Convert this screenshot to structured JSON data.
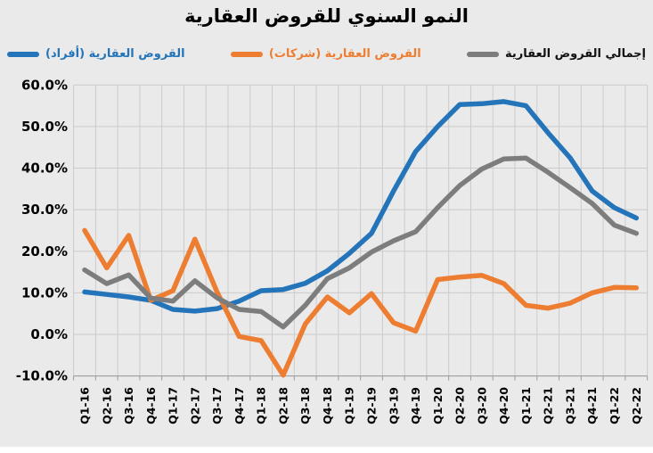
{
  "title": "النمو السنوي للقروض العقارية",
  "legend": [
    {
      "label": "القروض العقارية (أفراد)",
      "marker_color": "#2474b9",
      "text_color": "#2474b9"
    },
    {
      "label": "القروض العقارية (شركات)",
      "marker_color": "#ed7d31",
      "text_color": "#ed7d31"
    },
    {
      "label": "إجمالي القروض العقارية",
      "marker_color": "#7d7d7d",
      "text_color": "#111111"
    }
  ],
  "chart_data": {
    "type": "line",
    "title": "النمو السنوي للقروض العقارية",
    "categories": [
      "Q1-16",
      "Q2-16",
      "Q3-16",
      "Q4-16",
      "Q1-17",
      "Q2-17",
      "Q3-17",
      "Q4-17",
      "Q1-18",
      "Q2-18",
      "Q3-18",
      "Q4-18",
      "Q1-19",
      "Q2-19",
      "Q3-19",
      "Q4-19",
      "Q1-20",
      "Q2-20",
      "Q3-20",
      "Q4-20",
      "Q1-21",
      "Q2-21",
      "Q3-21",
      "Q4-21",
      "Q1-22",
      "Q2-22"
    ],
    "series": [
      {
        "name": "القروض العقارية (أفراد)",
        "color": "#2474b9",
        "values": [
          10.2,
          9.6,
          9.0,
          8.2,
          6.0,
          5.6,
          6.2,
          8.0,
          10.5,
          10.8,
          12.3,
          15.3,
          19.5,
          24.3,
          34.5,
          44.0,
          50.0,
          55.3,
          55.5,
          56.0,
          55.0,
          48.5,
          42.5,
          34.5,
          30.5,
          28.0
        ]
      },
      {
        "name": "القروض العقارية (شركات)",
        "color": "#ed7d31",
        "values": [
          25.0,
          16.0,
          23.8,
          8.2,
          10.5,
          22.9,
          10.2,
          -0.5,
          -1.5,
          -9.8,
          2.5,
          9.0,
          5.2,
          9.8,
          2.8,
          0.8,
          13.2,
          13.8,
          14.2,
          12.2,
          7.0,
          6.3,
          7.5,
          10.0,
          11.3,
          11.2
        ]
      },
      {
        "name": "إجمالي القروض العقارية",
        "color": "#7d7d7d",
        "values": [
          15.5,
          12.2,
          14.3,
          8.7,
          8.0,
          12.9,
          8.8,
          6.0,
          5.5,
          1.8,
          7.0,
          13.4,
          16.0,
          19.8,
          22.5,
          24.7,
          30.5,
          35.8,
          39.8,
          42.2,
          42.4,
          39.0,
          35.3,
          31.5,
          26.3,
          24.3
        ]
      }
    ],
    "y_ticks": [
      "60.0%",
      "50.0%",
      "40.0%",
      "30.0%",
      "20.0%",
      "10.0%",
      "0.0%",
      "-10.0%"
    ],
    "ylim": [
      -10,
      60
    ],
    "xlabel": "",
    "ylabel": "",
    "grid": true,
    "legend_position": "top"
  },
  "colors": {
    "background": "#eaeaea",
    "gridline": "#cbcbcb",
    "axis": "#9a9a9a",
    "text": "#000000"
  }
}
